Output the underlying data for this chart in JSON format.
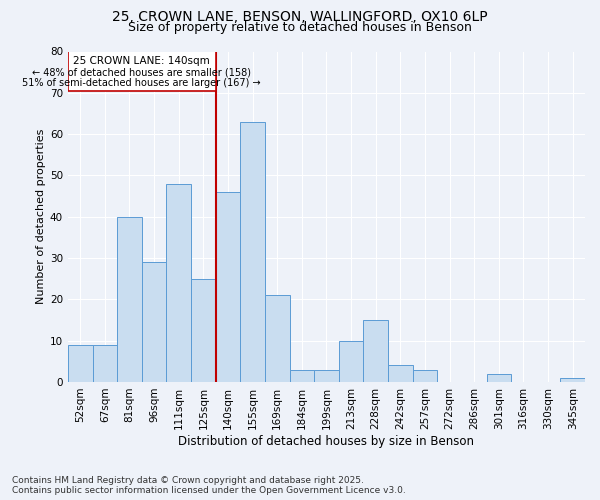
{
  "title_line1": "25, CROWN LANE, BENSON, WALLINGFORD, OX10 6LP",
  "title_line2": "Size of property relative to detached houses in Benson",
  "xlabel": "Distribution of detached houses by size in Benson",
  "ylabel": "Number of detached properties",
  "categories": [
    "52sqm",
    "67sqm",
    "81sqm",
    "96sqm",
    "111sqm",
    "125sqm",
    "140sqm",
    "155sqm",
    "169sqm",
    "184sqm",
    "199sqm",
    "213sqm",
    "228sqm",
    "242sqm",
    "257sqm",
    "272sqm",
    "286sqm",
    "301sqm",
    "316sqm",
    "330sqm",
    "345sqm"
  ],
  "values": [
    9,
    9,
    40,
    29,
    48,
    25,
    46,
    63,
    21,
    3,
    3,
    10,
    15,
    4,
    3,
    0,
    0,
    2,
    0,
    0,
    1
  ],
  "bar_color": "#c9ddf0",
  "bar_edge_color": "#5b9bd5",
  "highlight_bar_index": 6,
  "highlight_label": "25 CROWN LANE: 140sqm",
  "highlight_smaller": "← 48% of detached houses are smaller (158)",
  "highlight_larger": "51% of semi-detached houses are larger (167) →",
  "highlight_line_color": "#c00000",
  "annotation_box_color": "#c00000",
  "ylim": [
    0,
    80
  ],
  "yticks": [
    0,
    10,
    20,
    30,
    40,
    50,
    60,
    70,
    80
  ],
  "background_color": "#eef2f9",
  "footer_line1": "Contains HM Land Registry data © Crown copyright and database right 2025.",
  "footer_line2": "Contains public sector information licensed under the Open Government Licence v3.0.",
  "grid_color": "#ffffff",
  "title_fontsize": 10,
  "subtitle_fontsize": 9,
  "axis_label_fontsize": 8,
  "tick_fontsize": 7.5,
  "footer_fontsize": 6.5,
  "bar_width": 1.0
}
